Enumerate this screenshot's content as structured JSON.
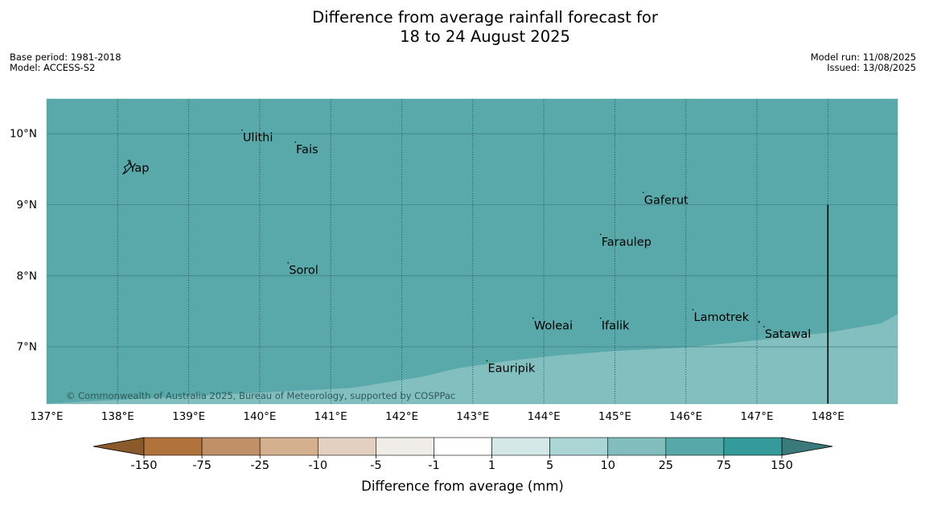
{
  "header": {
    "title_line1": "Difference from average rainfall forecast for",
    "title_line2": "18 to 24 August 2025",
    "base_period": "Base period: 1981-2018",
    "model": "Model: ACCESS-S2",
    "model_run": "Model run: 11/08/2025",
    "issued": "Issued: 13/08/2025"
  },
  "map": {
    "lon_range": [
      137,
      149
    ],
    "lat_range": [
      6.2,
      10.5
    ],
    "lon_ticks": [
      137,
      138,
      139,
      140,
      141,
      142,
      143,
      144,
      145,
      146,
      147,
      148
    ],
    "lon_labels": [
      "137°E",
      "138°E",
      "139°E",
      "140°E",
      "141°E",
      "142°E",
      "143°E",
      "144°E",
      "145°E",
      "146°E",
      "147°E",
      "148°E"
    ],
    "lat_ticks": [
      7,
      8,
      9,
      10
    ],
    "lat_labels": [
      "7°N",
      "8°N",
      "9°N",
      "10°N"
    ],
    "background_color": "#5aa9aa",
    "lower_band_color": "#84bfbf",
    "places": [
      {
        "name": "Ulithi",
        "lon": 139.75,
        "lat": 9.95
      },
      {
        "name": "Fais",
        "lon": 140.5,
        "lat": 9.78
      },
      {
        "name": "Yap",
        "lon": 138.15,
        "lat": 9.52
      },
      {
        "name": "Gaferut",
        "lon": 145.4,
        "lat": 9.07
      },
      {
        "name": "Faraulep",
        "lon": 144.8,
        "lat": 8.48
      },
      {
        "name": "Sorol",
        "lon": 140.4,
        "lat": 8.08
      },
      {
        "name": "Lamotrek",
        "lon": 146.1,
        "lat": 7.42
      },
      {
        "name": "Woleai",
        "lon": 143.85,
        "lat": 7.3
      },
      {
        "name": "Ifalik",
        "lon": 144.8,
        "lat": 7.3
      },
      {
        "name": "Satawal",
        "lon": 147.1,
        "lat": 7.18
      },
      {
        "name": "Eauripik",
        "lon": 143.2,
        "lat": 6.7
      }
    ],
    "copyright": "© Commonwealth of Australia 2025, Bureau of Meteorology, supported by COSPPac"
  },
  "colorbar": {
    "labels": [
      "-150",
      "-75",
      "-25",
      "-10",
      "-5",
      "-1",
      "1",
      "5",
      "10",
      "25",
      "75",
      "150"
    ],
    "colors": [
      "#b0733c",
      "#c09068",
      "#d5b08e",
      "#e4d0c0",
      "#f0ede8",
      "#ffffff",
      "#d5e8e8",
      "#abd4d5",
      "#82bdbd",
      "#56a8a9",
      "#349a9a"
    ],
    "extend_low_color": "#8b5a2b",
    "extend_high_color": "#3a7a7a",
    "label": "Difference from average (mm)"
  }
}
